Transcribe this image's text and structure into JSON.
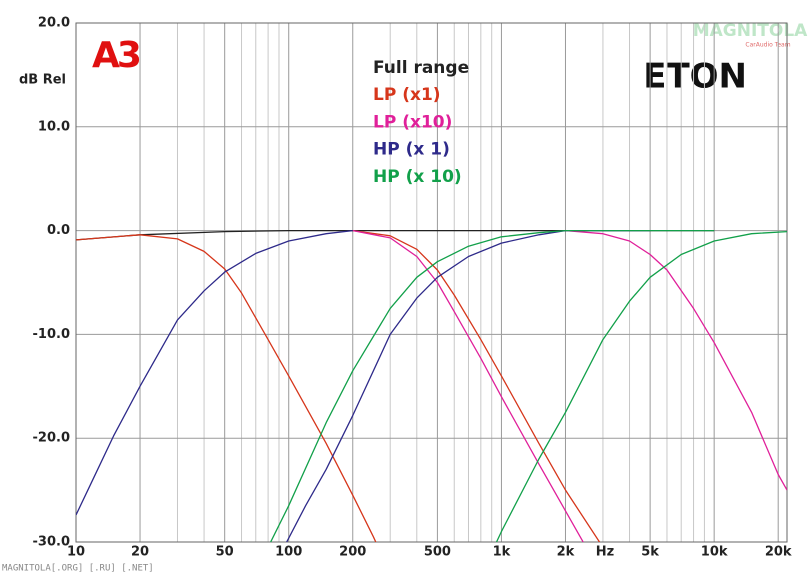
{
  "chart_data": {
    "type": "line",
    "logo": "A3",
    "brand": "ETON",
    "watermark": "MAGNITOLA",
    "watermark_sub": "CarAudio Team",
    "footer": "MAGNITOLA[.ORG] [.RU] [.NET]",
    "ylabel": "dB Rel",
    "xlabel": "Hz",
    "xscale": "log",
    "xlim": [
      10,
      22000
    ],
    "ylim": [
      -30,
      20
    ],
    "grid": true,
    "xticks": [
      10,
      20,
      50,
      100,
      200,
      500,
      {
        "value": 1000,
        "label": "1k"
      },
      {
        "value": 2000,
        "label": "2k"
      },
      {
        "value": 5000,
        "label": "5k"
      },
      {
        "value": 10000,
        "label": "10k"
      },
      {
        "value": 20000,
        "label": "20k"
      }
    ],
    "x_minor_grid": [
      30,
      40,
      60,
      70,
      80,
      90,
      300,
      400,
      600,
      700,
      800,
      900,
      3000,
      4000,
      6000,
      7000,
      8000,
      9000
    ],
    "yticks": [
      {
        "value": 20,
        "label": "20.0"
      },
      {
        "value": 10,
        "label": "10.0"
      },
      {
        "value": 0,
        "label": "0.0"
      },
      {
        "value": -10,
        "label": "-10.0"
      },
      {
        "value": -20,
        "label": "-20.0"
      },
      {
        "value": -30,
        "label": "-30.0"
      }
    ],
    "series": [
      {
        "name": "Full range",
        "color": "#222222",
        "curves": [
          {
            "x": [
              10,
              20,
              50,
              100,
              1000,
              10000
            ],
            "values": [
              -0.9,
              -0.4,
              -0.1,
              0,
              0,
              0
            ]
          }
        ]
      },
      {
        "name": "LP (x1)",
        "color": "#d6361b",
        "curves": [
          {
            "x": [
              10,
              20,
              30,
              40,
              50,
              60,
              80,
              100,
              150,
              200,
              250,
              270
            ],
            "values": [
              -0.9,
              -0.4,
              -0.8,
              -2,
              -3.7,
              -6,
              -10.5,
              -14,
              -20.5,
              -25.5,
              -29.5,
              -31
            ]
          },
          {
            "x": [
              200,
              300,
              400,
              500,
              600,
              800,
              1000,
              1500,
              2000,
              3000
            ],
            "values": [
              0,
              -0.5,
              -1.8,
              -3.8,
              -6.2,
              -10.5,
              -14,
              -20.5,
              -25,
              -30.5
            ]
          }
        ]
      },
      {
        "name": "LP (x10)",
        "color": "#e0209a",
        "curves": [
          {
            "x": [
              200,
              300,
              400,
              500,
              600,
              800,
              1000,
              1500,
              2000,
              2500
            ],
            "values": [
              0,
              -0.7,
              -2.5,
              -5,
              -7.8,
              -12.3,
              -16,
              -22.5,
              -27,
              -30.5
            ]
          },
          {
            "x": [
              2000,
              3000,
              4000,
              5000,
              6000,
              8000,
              10000,
              15000,
              20000,
              22000
            ],
            "values": [
              0,
              -0.3,
              -1,
              -2.3,
              -3.8,
              -7.5,
              -10.8,
              -17.5,
              -23.5,
              -25
            ]
          }
        ]
      },
      {
        "name": "HP (x 1)",
        "color": "#2e2a8a",
        "curves": [
          {
            "x": [
              10,
              12,
              15,
              20,
              30,
              40,
              50,
              70,
              100,
              150,
              200
            ],
            "values": [
              -27.4,
              -24,
              -19.8,
              -15,
              -8.6,
              -5.8,
              -4,
              -2.2,
              -1,
              -0.3,
              0
            ]
          },
          {
            "x": [
              95,
              120,
              150,
              200,
              300,
              400,
              500,
              700,
              1000,
              1500,
              2000,
              5000
            ],
            "values": [
              -30.5,
              -26.5,
              -23,
              -17.8,
              -10,
              -6.5,
              -4.5,
              -2.5,
              -1.2,
              -0.4,
              0,
              0
            ]
          }
        ]
      },
      {
        "name": "HP (x 10)",
        "color": "#12a04a",
        "curves": [
          {
            "x": [
              80,
              100,
              150,
              200,
              300,
              400,
              500,
              700,
              1000,
              1500,
              2000,
              10000
            ],
            "values": [
              -30.5,
              -26.5,
              -18.5,
              -13.5,
              -7.5,
              -4.5,
              -3,
              -1.5,
              -0.6,
              -0.2,
              0,
              0
            ]
          },
          {
            "x": [
              900,
              1000,
              1500,
              2000,
              3000,
              4000,
              5000,
              7000,
              10000,
              15000,
              22000
            ],
            "values": [
              -31,
              -29,
              -22,
              -17.5,
              -10.5,
              -6.8,
              -4.5,
              -2.3,
              -1,
              -0.3,
              -0.1
            ]
          }
        ]
      }
    ]
  }
}
